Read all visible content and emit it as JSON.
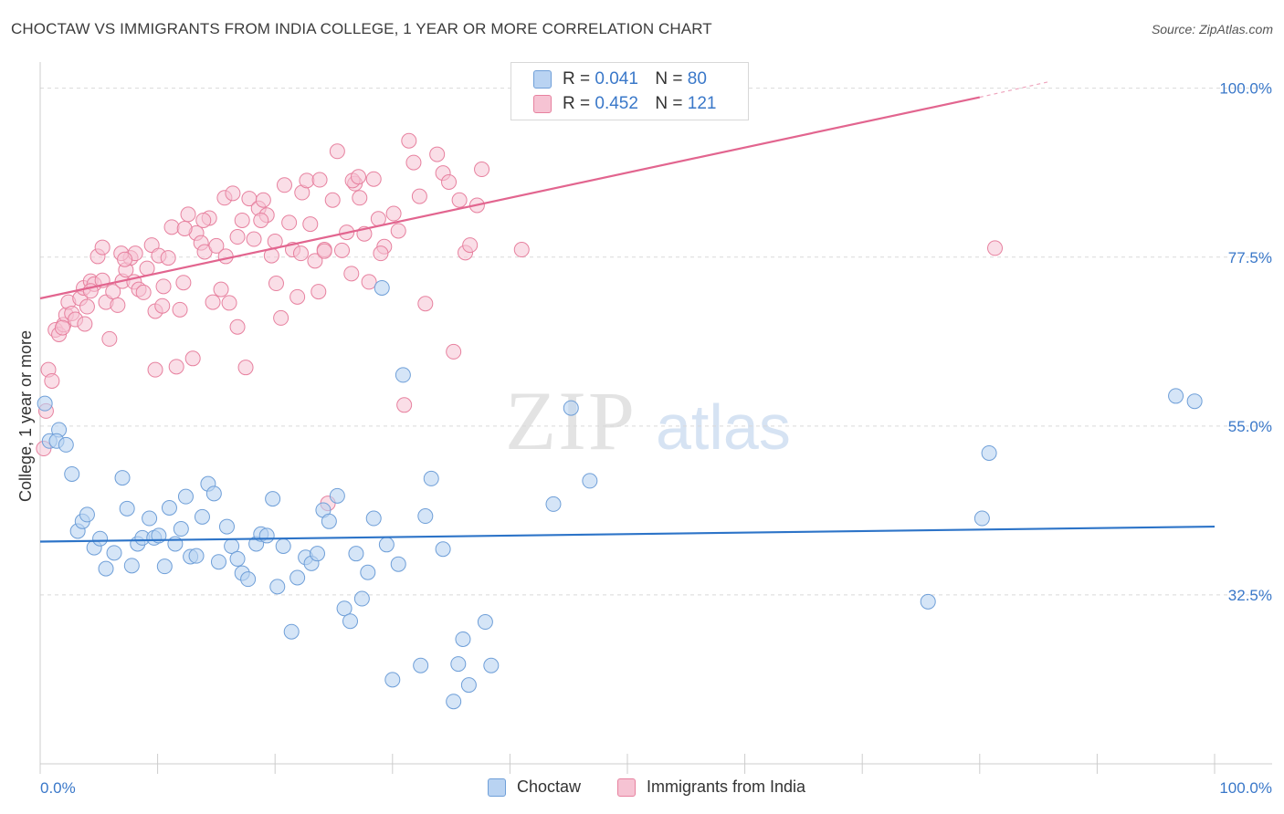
{
  "header": {
    "title": "CHOCTAW VS IMMIGRANTS FROM INDIA COLLEGE, 1 YEAR OR MORE CORRELATION CHART",
    "source": "Source: ZipAtlas.com"
  },
  "legend": {
    "r_label": "R =",
    "n_label": "N =",
    "items": [
      {
        "r": "0.041",
        "n": "80"
      },
      {
        "r": "0.452",
        "n": "121"
      }
    ]
  },
  "watermark": {
    "zip": "ZIP",
    "atlas": "atlas"
  },
  "colors": {
    "choctaw_fill": "#b9d3f2",
    "choctaw_stroke": "#6f9fd8",
    "choctaw_line": "#2d74c8",
    "india_fill": "#f6c3d3",
    "india_stroke": "#e7819f",
    "india_line": "#e2658f",
    "axis_tick_text": "#3a78c9",
    "grid": "#d9d9d9"
  },
  "chart_data": {
    "type": "scatter",
    "title": "CHOCTAW VS IMMIGRANTS FROM INDIA COLLEGE, 1 YEAR OR MORE CORRELATION CHART",
    "xlabel": "",
    "ylabel": "College, 1 year or more",
    "xlim": [
      0,
      100
    ],
    "ylim": [
      10,
      103
    ],
    "x_tick_labels": [
      "0.0%",
      "100.0%"
    ],
    "y_ticks": [
      32.5,
      55.0,
      77.5,
      100.0
    ],
    "y_tick_labels": [
      "32.5%",
      "55.0%",
      "77.5%",
      "100.0%"
    ],
    "grid": "horizontal dashed",
    "legend_position": "top-center",
    "series": [
      {
        "name": "Choctaw",
        "r": 0.041,
        "n": 80,
        "trend": {
          "x": [
            0,
            100
          ],
          "y": [
            39.6,
            41.6
          ]
        },
        "points": [
          [
            0.4,
            58
          ],
          [
            0.8,
            53
          ],
          [
            1.6,
            54.5
          ],
          [
            1.4,
            53
          ],
          [
            2.2,
            52.5
          ],
          [
            2.7,
            48.6
          ],
          [
            3.2,
            41
          ],
          [
            3.6,
            42.3
          ],
          [
            4,
            43.2
          ],
          [
            4.6,
            38.8
          ],
          [
            5.1,
            40
          ],
          [
            5.6,
            36
          ],
          [
            6.3,
            38.1
          ],
          [
            7.0,
            48.1
          ],
          [
            7.4,
            44
          ],
          [
            7.8,
            36.4
          ],
          [
            8.3,
            39.3
          ],
          [
            8.7,
            40.1
          ],
          [
            9.3,
            42.7
          ],
          [
            9.7,
            40.1
          ],
          [
            10.1,
            40.4
          ],
          [
            10.6,
            36.3
          ],
          [
            11.0,
            44.1
          ],
          [
            11.5,
            39.3
          ],
          [
            12.0,
            41.3
          ],
          [
            12.4,
            45.6
          ],
          [
            12.8,
            37.6
          ],
          [
            13.3,
            37.7
          ],
          [
            13.8,
            42.9
          ],
          [
            14.3,
            47.3
          ],
          [
            14.8,
            46
          ],
          [
            15.2,
            36.9
          ],
          [
            15.9,
            41.6
          ],
          [
            16.3,
            39
          ],
          [
            16.8,
            37.3
          ],
          [
            17.2,
            35.4
          ],
          [
            17.7,
            34.6
          ],
          [
            18.4,
            39.3
          ],
          [
            18.8,
            40.6
          ],
          [
            19.3,
            40.4
          ],
          [
            19.8,
            45.3
          ],
          [
            20.2,
            33.6
          ],
          [
            20.7,
            39
          ],
          [
            21.4,
            27.6
          ],
          [
            21.9,
            34.8
          ],
          [
            22.6,
            37.5
          ],
          [
            23.1,
            36.7
          ],
          [
            23.6,
            38
          ],
          [
            24.1,
            43.8
          ],
          [
            24.6,
            42.3
          ],
          [
            25.3,
            45.7
          ],
          [
            25.9,
            30.7
          ],
          [
            26.4,
            29
          ],
          [
            26.9,
            38
          ],
          [
            27.4,
            32
          ],
          [
            27.9,
            35.5
          ],
          [
            28.4,
            42.7
          ],
          [
            29.1,
            73.4
          ],
          [
            29.5,
            39.2
          ],
          [
            30.0,
            21.2
          ],
          [
            30.5,
            36.6
          ],
          [
            30.9,
            61.8
          ],
          [
            32.4,
            23.1
          ],
          [
            32.8,
            43
          ],
          [
            33.3,
            48
          ],
          [
            34.3,
            38.6
          ],
          [
            35.2,
            18.3
          ],
          [
            35.6,
            23.3
          ],
          [
            36.0,
            26.6
          ],
          [
            36.5,
            20.5
          ],
          [
            37.9,
            28.9
          ],
          [
            38.4,
            23.1
          ],
          [
            45.2,
            57.4
          ],
          [
            43.7,
            44.6
          ],
          [
            46.8,
            47.7
          ],
          [
            75.6,
            31.6
          ],
          [
            80.2,
            42.7
          ],
          [
            80.8,
            51.4
          ],
          [
            96.7,
            59
          ],
          [
            98.3,
            58.3
          ]
        ]
      },
      {
        "name": "Immigrants from India",
        "r": 0.452,
        "n": 121,
        "trend": {
          "x": [
            0,
            80
          ],
          "y": [
            72,
            98.8
          ]
        },
        "trend_dashed": {
          "x": [
            80,
            86
          ],
          "y": [
            98.8,
            100.9
          ]
        },
        "points": [
          [
            0.3,
            52
          ],
          [
            0.5,
            57
          ],
          [
            0.7,
            62.5
          ],
          [
            1,
            61
          ],
          [
            1.3,
            67.8
          ],
          [
            1.6,
            67.2
          ],
          [
            2,
            68.5
          ],
          [
            2.2,
            69.8
          ],
          [
            2.4,
            71.5
          ],
          [
            2.7,
            70
          ],
          [
            3,
            69.2
          ],
          [
            3.4,
            72
          ],
          [
            3.7,
            73.4
          ],
          [
            4.0,
            70.9
          ],
          [
            4.3,
            74.3
          ],
          [
            4.6,
            73.9
          ],
          [
            4.9,
            77.6
          ],
          [
            5.3,
            74.4
          ],
          [
            5.6,
            71.5
          ],
          [
            5.9,
            66.6
          ],
          [
            6.2,
            72.9
          ],
          [
            6.6,
            71.1
          ],
          [
            7.0,
            74.3
          ],
          [
            7.3,
            75.8
          ],
          [
            7.7,
            77.4
          ],
          [
            8.0,
            74.2
          ],
          [
            8.4,
            73.2
          ],
          [
            8.8,
            72.8
          ],
          [
            9.1,
            76
          ],
          [
            9.5,
            79.1
          ],
          [
            9.8,
            70.3
          ],
          [
            10.1,
            77.7
          ],
          [
            10.5,
            73.6
          ],
          [
            10.9,
            77.4
          ],
          [
            11.2,
            81.5
          ],
          [
            11.6,
            62.9
          ],
          [
            11.9,
            70.5
          ],
          [
            12.2,
            74.1
          ],
          [
            12.6,
            83.2
          ],
          [
            13.0,
            64
          ],
          [
            13.3,
            80.7
          ],
          [
            13.7,
            79.4
          ],
          [
            14.0,
            78.2
          ],
          [
            14.4,
            82.7
          ],
          [
            14.7,
            71.5
          ],
          [
            15.0,
            79
          ],
          [
            15.4,
            73.2
          ],
          [
            15.7,
            85.4
          ],
          [
            16.1,
            71.4
          ],
          [
            16.4,
            86
          ],
          [
            16.8,
            68.2
          ],
          [
            17.2,
            82.4
          ],
          [
            17.5,
            62.8
          ],
          [
            17.8,
            85.3
          ],
          [
            18.2,
            79.9
          ],
          [
            18.6,
            84
          ],
          [
            19.0,
            85.1
          ],
          [
            19.3,
            83.1
          ],
          [
            19.7,
            77.7
          ],
          [
            20.1,
            74
          ],
          [
            20.5,
            69.4
          ],
          [
            20.8,
            87.1
          ],
          [
            21.2,
            82.1
          ],
          [
            21.5,
            78.5
          ],
          [
            21.9,
            72.2
          ],
          [
            22.3,
            86.1
          ],
          [
            22.7,
            87.7
          ],
          [
            23.0,
            81.9
          ],
          [
            23.4,
            77
          ],
          [
            23.8,
            87.8
          ],
          [
            24.2,
            78.5
          ],
          [
            24.5,
            44.7
          ],
          [
            24.9,
            85.1
          ],
          [
            25.3,
            91.6
          ],
          [
            25.7,
            78.4
          ],
          [
            26.1,
            80.8
          ],
          [
            26.5,
            75.3
          ],
          [
            26.8,
            87.3
          ],
          [
            27.2,
            85.4
          ],
          [
            27.6,
            80.6
          ],
          [
            28.0,
            74.2
          ],
          [
            28.4,
            87.9
          ],
          [
            28.8,
            82.6
          ],
          [
            29.3,
            78.9
          ],
          [
            30.1,
            83.3
          ],
          [
            30.5,
            81
          ],
          [
            31.0,
            57.8
          ],
          [
            31.4,
            93
          ],
          [
            31.8,
            90.1
          ],
          [
            32.3,
            85.6
          ],
          [
            32.8,
            71.3
          ],
          [
            33.8,
            91.2
          ],
          [
            34.3,
            88.7
          ],
          [
            34.8,
            87.5
          ],
          [
            35.2,
            64.9
          ],
          [
            35.7,
            85.1
          ],
          [
            36.2,
            78.1
          ],
          [
            36.6,
            79.1
          ],
          [
            37.2,
            84.4
          ],
          [
            37.6,
            89.2
          ],
          [
            41.0,
            78.5
          ],
          [
            81.3,
            78.7
          ],
          [
            9.8,
            62.5
          ],
          [
            5.3,
            78.8
          ],
          [
            13.9,
            82.4
          ],
          [
            6.9,
            78
          ],
          [
            8.1,
            78
          ],
          [
            10.4,
            71
          ],
          [
            16.8,
            80.2
          ],
          [
            18.8,
            82.4
          ],
          [
            23.7,
            72.9
          ],
          [
            26.6,
            87.7
          ],
          [
            29.0,
            78
          ],
          [
            12.3,
            81.3
          ],
          [
            15.8,
            77.6
          ],
          [
            7.2,
            77.2
          ],
          [
            4.3,
            73
          ],
          [
            3.8,
            68.6
          ],
          [
            20.0,
            79.6
          ],
          [
            22.2,
            78
          ],
          [
            24.2,
            78.3
          ],
          [
            27.1,
            88.2
          ],
          [
            1.9,
            68.1
          ]
        ]
      }
    ]
  }
}
